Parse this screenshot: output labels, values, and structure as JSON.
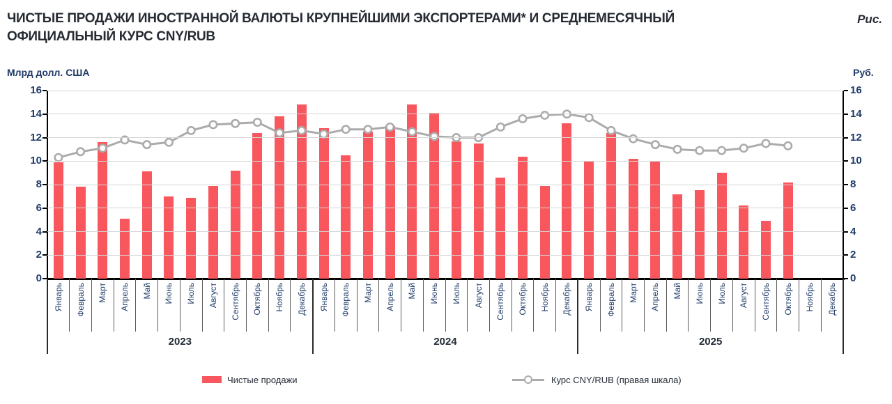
{
  "header": {
    "title_line1": "ЧИСТЫЕ ПРОДАЖИ ИНОСТРАННОЙ ВАЛЮТЫ КРУПНЕЙШИМИ ЭКСПОРТЕРАМИ* И СРЕДНЕМЕСЯЧНЫЙ",
    "title_line2": "ОФИЦИАЛЬНЫЙ КУРС CNY/RUB",
    "figure_label": "Рис."
  },
  "axes": {
    "left_unit": "Млрд долл. США",
    "right_unit": "Руб.",
    "ticks": [
      0,
      2,
      4,
      6,
      8,
      10,
      12,
      14,
      16
    ]
  },
  "colors": {
    "bar": "#f9575e",
    "line": "#ababab",
    "grid": "#d5d5d5",
    "axis_text": "#1e3a68"
  },
  "chart_data": {
    "type": "bar",
    "title": "Чистые продажи иностранной валюты крупнейшими экспортерами* и среднемесячный официальный курс CNY/RUB",
    "xlabel": "",
    "ylabel_left": "Млрд долл. США",
    "ylabel_right": "Руб.",
    "ylim_left": [
      0,
      16
    ],
    "ylim_right": [
      0,
      16
    ],
    "grid": true,
    "legend_position": "bottom",
    "categories": [
      "Январь",
      "Февраль",
      "Март",
      "Апрель",
      "Май",
      "Июнь",
      "Июль",
      "Август",
      "Сентябрь",
      "Октябрь",
      "Ноябрь",
      "Декабрь",
      "Январь",
      "Февраль",
      "Март",
      "Апрель",
      "Май",
      "Июнь",
      "Июль",
      "Август",
      "Сентябрь",
      "Октябрь",
      "Ноябрь",
      "Декабрь",
      "Январь",
      "Февраль",
      "Март",
      "Апрель",
      "Май",
      "Июнь",
      "Июль",
      "Август",
      "Сентябрь",
      "Октябрь",
      "Ноябрь",
      "Декабрь"
    ],
    "year_groups": [
      {
        "label": "2023",
        "start": 0,
        "count": 12
      },
      {
        "label": "2024",
        "start": 12,
        "count": 12
      },
      {
        "label": "2025",
        "start": 24,
        "count": 12
      }
    ],
    "series": [
      {
        "name": "Чистые продажи",
        "type": "bar",
        "axis": "left",
        "color": "#f9575e",
        "values": [
          9.9,
          7.8,
          11.6,
          5.1,
          9.1,
          7.0,
          6.9,
          7.9,
          9.2,
          12.4,
          13.8,
          14.8,
          12.8,
          10.5,
          12.5,
          13.0,
          14.8,
          14.1,
          11.7,
          11.5,
          8.6,
          10.4,
          7.9,
          13.2,
          10.0,
          12.4,
          10.2,
          10.0,
          7.2,
          7.5,
          9.0,
          6.2,
          4.9,
          8.2,
          null,
          null
        ]
      },
      {
        "name": "Курс CNY/RUB (правая шкала)",
        "type": "line",
        "axis": "right",
        "color": "#ababab",
        "marker": "open-circle",
        "values": [
          10.3,
          10.8,
          11.1,
          11.8,
          11.4,
          11.6,
          12.6,
          13.1,
          13.2,
          13.3,
          12.4,
          12.6,
          12.3,
          12.7,
          12.7,
          12.9,
          12.5,
          12.1,
          12.0,
          12.0,
          12.9,
          13.6,
          13.9,
          14.0,
          13.7,
          12.6,
          11.9,
          11.4,
          11.0,
          10.9,
          10.9,
          11.1,
          11.5,
          11.3,
          null,
          null
        ]
      }
    ]
  }
}
